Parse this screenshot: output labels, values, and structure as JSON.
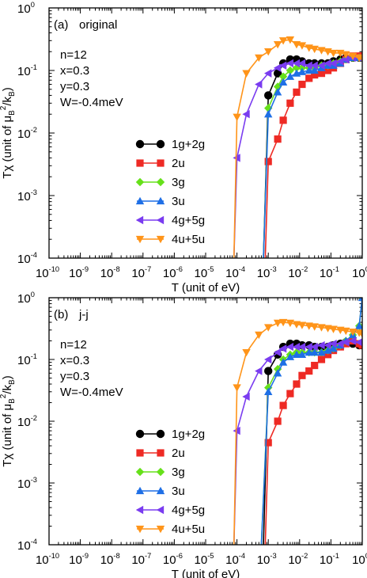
{
  "chart_data": [
    {
      "type": "line",
      "panel_label": "(a)",
      "title": "original",
      "params": [
        "n=12",
        "x=0.3",
        "y=0.3",
        "W=-0.4meV"
      ],
      "xlabel": "T (unit of eV)",
      "ylabel": "Tχ (unit of μB²/kB)",
      "xscale": "log",
      "yscale": "log",
      "xlim": [
        1e-10,
        1
      ],
      "ylim": [
        0.0001,
        1
      ],
      "xticks": [
        1e-10,
        1e-09,
        1e-08,
        1e-07,
        1e-06,
        1e-05,
        0.0001,
        0.001,
        0.01,
        0.1,
        1
      ],
      "yticks": [
        0.0001,
        0.001,
        0.01,
        0.1,
        1
      ],
      "legend_position": "center",
      "series": [
        {
          "name": "1g+2g",
          "color": "#000000",
          "marker": "circle",
          "x": [
            0.0007,
            0.001,
            0.002,
            0.003,
            0.005,
            0.008,
            0.012,
            0.02,
            0.03,
            0.05,
            0.08,
            0.12,
            0.2,
            0.3,
            0.5,
            0.8,
            1.0
          ],
          "y": [
            0.0001,
            0.04,
            0.09,
            0.13,
            0.15,
            0.15,
            0.14,
            0.13,
            0.13,
            0.13,
            0.13,
            0.14,
            0.15,
            0.16,
            0.16,
            0.16,
            0.16
          ]
        },
        {
          "name": "2u",
          "color": "#ee2a24",
          "marker": "square",
          "x": [
            0.0008,
            0.001,
            0.002,
            0.003,
            0.005,
            0.008,
            0.012,
            0.02,
            0.03,
            0.05,
            0.08,
            0.12,
            0.2,
            0.3,
            0.5,
            0.8,
            1.0
          ],
          "y": [
            0.0001,
            0.0035,
            0.008,
            0.016,
            0.03,
            0.045,
            0.06,
            0.075,
            0.085,
            0.09,
            0.1,
            0.11,
            0.13,
            0.15,
            0.17,
            0.17,
            0.17
          ]
        },
        {
          "name": "3g",
          "color": "#66e01a",
          "marker": "diamond",
          "x": [
            0.0007,
            0.001,
            0.002,
            0.003,
            0.005,
            0.008,
            0.012,
            0.02,
            0.03,
            0.05,
            0.08,
            0.12,
            0.2,
            0.3,
            0.5,
            0.8,
            1.0
          ],
          "y": [
            0.0001,
            0.025,
            0.055,
            0.08,
            0.1,
            0.11,
            0.11,
            0.11,
            0.11,
            0.12,
            0.12,
            0.13,
            0.14,
            0.15,
            0.16,
            0.16,
            0.16
          ]
        },
        {
          "name": "3u",
          "color": "#1e6fe6",
          "marker": "triangle-up",
          "x": [
            0.0007,
            0.001,
            0.002,
            0.003,
            0.005,
            0.008,
            0.012,
            0.02,
            0.03,
            0.05,
            0.08,
            0.12,
            0.2,
            0.3,
            0.5,
            0.8,
            1.0
          ],
          "y": [
            0.0001,
            0.02,
            0.045,
            0.065,
            0.08,
            0.09,
            0.095,
            0.1,
            0.1,
            0.11,
            0.12,
            0.12,
            0.13,
            0.15,
            0.16,
            0.16,
            0.16
          ]
        },
        {
          "name": "4g+5g",
          "color": "#7a3cf0",
          "marker": "triangle-left",
          "x": [
            8e-05,
            0.0001,
            0.0002,
            0.0005,
            0.001,
            0.002,
            0.003,
            0.005,
            0.008,
            0.012,
            0.02,
            0.03,
            0.05,
            0.08,
            0.12,
            0.2,
            0.3,
            0.5,
            0.8,
            1.0
          ],
          "y": [
            0.0001,
            0.004,
            0.02,
            0.06,
            0.09,
            0.11,
            0.12,
            0.13,
            0.13,
            0.13,
            0.12,
            0.12,
            0.12,
            0.13,
            0.13,
            0.14,
            0.15,
            0.16,
            0.16,
            0.16
          ]
        },
        {
          "name": "4u+5u",
          "color": "#ff9419",
          "marker": "triangle-down",
          "x": [
            8e-05,
            0.0001,
            0.0002,
            0.0005,
            0.001,
            0.002,
            0.003,
            0.005,
            0.008,
            0.012,
            0.02,
            0.03,
            0.05,
            0.08,
            0.12,
            0.2,
            0.3,
            0.5,
            0.8,
            1.0
          ],
          "y": [
            0.0001,
            0.018,
            0.09,
            0.16,
            0.2,
            0.26,
            0.3,
            0.31,
            0.26,
            0.25,
            0.23,
            0.22,
            0.21,
            0.2,
            0.19,
            0.19,
            0.18,
            0.17,
            0.16,
            0.16
          ]
        }
      ]
    },
    {
      "type": "line",
      "panel_label": "(b)",
      "title": "j-j",
      "params": [
        "n=12",
        "x=0.3",
        "y=0.3",
        "W=-0.4meV"
      ],
      "xlabel": "T (unit of eV)",
      "ylabel": "Tχ (unit of μB²/kB)",
      "xscale": "log",
      "yscale": "log",
      "xlim": [
        1e-10,
        1
      ],
      "ylim": [
        0.0001,
        1
      ],
      "xticks": [
        1e-10,
        1e-09,
        1e-08,
        1e-07,
        1e-06,
        1e-05,
        0.0001,
        0.001,
        0.01,
        0.1,
        1
      ],
      "yticks": [
        0.0001,
        0.001,
        0.01,
        0.1,
        1
      ],
      "legend_position": "center",
      "series": [
        {
          "name": "1g+2g",
          "color": "#000000",
          "marker": "circle",
          "x": [
            0.0007,
            0.001,
            0.002,
            0.003,
            0.005,
            0.008,
            0.012,
            0.02,
            0.03,
            0.05,
            0.08,
            0.12,
            0.2,
            0.3,
            0.5,
            0.8,
            1.0
          ],
          "y": [
            0.0001,
            0.065,
            0.12,
            0.16,
            0.18,
            0.18,
            0.17,
            0.17,
            0.16,
            0.16,
            0.16,
            0.17,
            0.18,
            0.19,
            0.18,
            0.17,
            0.17
          ]
        },
        {
          "name": "2u",
          "color": "#ee2a24",
          "marker": "square",
          "x": [
            0.0008,
            0.001,
            0.002,
            0.003,
            0.005,
            0.008,
            0.012,
            0.02,
            0.03,
            0.05,
            0.08,
            0.12,
            0.2,
            0.3,
            0.5,
            0.8,
            1.0
          ],
          "y": [
            0.0001,
            0.0045,
            0.01,
            0.018,
            0.028,
            0.04,
            0.055,
            0.065,
            0.08,
            0.1,
            0.12,
            0.14,
            0.16,
            0.18,
            0.2,
            0.18,
            0.17
          ]
        },
        {
          "name": "3g",
          "color": "#66e01a",
          "marker": "diamond",
          "x": [
            0.0006,
            0.001,
            0.002,
            0.003,
            0.005,
            0.008,
            0.012,
            0.02,
            0.03,
            0.05,
            0.08,
            0.12,
            0.2,
            0.3,
            0.5,
            0.8,
            1.0
          ],
          "y": [
            0.0001,
            0.035,
            0.07,
            0.1,
            0.12,
            0.13,
            0.13,
            0.13,
            0.13,
            0.13,
            0.14,
            0.15,
            0.17,
            0.2,
            0.25,
            0.35,
            1.0
          ]
        },
        {
          "name": "3u",
          "color": "#1e6fe6",
          "marker": "triangle-up",
          "x": [
            0.0006,
            0.001,
            0.002,
            0.003,
            0.005,
            0.008,
            0.012,
            0.02,
            0.03,
            0.05,
            0.08,
            0.12,
            0.2,
            0.3,
            0.5,
            0.8,
            1.0
          ],
          "y": [
            0.0001,
            0.03,
            0.06,
            0.09,
            0.11,
            0.12,
            0.12,
            0.13,
            0.13,
            0.13,
            0.14,
            0.15,
            0.17,
            0.2,
            0.25,
            0.35,
            1.0
          ]
        },
        {
          "name": "4g+5g",
          "color": "#7a3cf0",
          "marker": "triangle-left",
          "x": [
            8e-05,
            0.0001,
            0.0002,
            0.0005,
            0.001,
            0.002,
            0.003,
            0.005,
            0.008,
            0.012,
            0.02,
            0.03,
            0.05,
            0.08,
            0.12,
            0.2,
            0.3,
            0.5,
            0.8,
            1.0
          ],
          "y": [
            0.0001,
            0.007,
            0.025,
            0.065,
            0.1,
            0.13,
            0.15,
            0.16,
            0.16,
            0.16,
            0.16,
            0.16,
            0.17,
            0.17,
            0.18,
            0.18,
            0.19,
            0.2,
            0.19,
            0.18
          ]
        },
        {
          "name": "4u+5u",
          "color": "#ff9419",
          "marker": "triangle-down",
          "x": [
            8e-05,
            0.0001,
            0.0002,
            0.0005,
            0.001,
            0.002,
            0.003,
            0.005,
            0.008,
            0.012,
            0.02,
            0.03,
            0.05,
            0.08,
            0.12,
            0.2,
            0.3,
            0.5,
            0.8,
            1.0
          ],
          "y": [
            0.0001,
            0.035,
            0.13,
            0.25,
            0.33,
            0.39,
            0.4,
            0.39,
            0.37,
            0.36,
            0.35,
            0.34,
            0.33,
            0.32,
            0.31,
            0.3,
            0.29,
            0.28,
            0.27,
            0.26
          ]
        }
      ]
    }
  ]
}
